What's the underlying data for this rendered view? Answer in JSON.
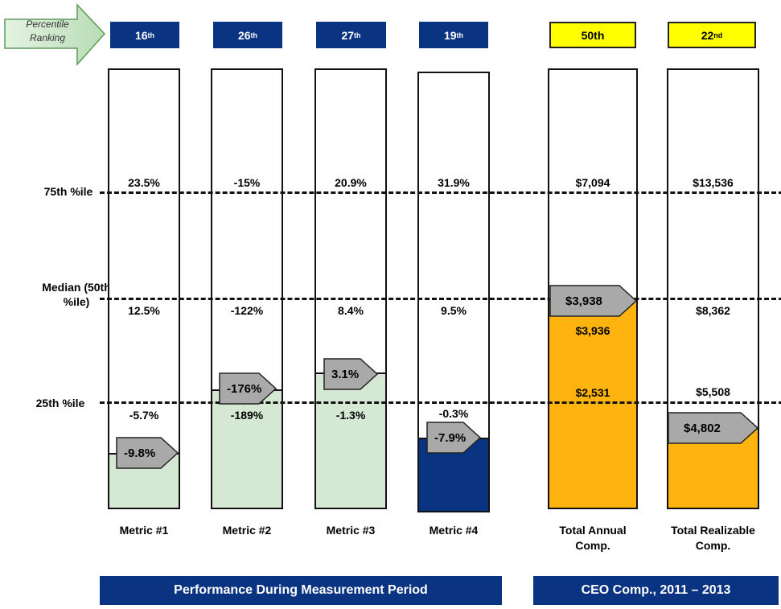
{
  "chart_data": {
    "type": "bar",
    "title": "",
    "header_arrow": "Percentile Ranking",
    "y_reference_labels": [
      "75th %ile",
      "Median (50th %ile)",
      "25th %ile"
    ],
    "columns": [
      {
        "label": "Metric #1",
        "rank": "16",
        "suffix": "th",
        "percentile": 16,
        "p75": "23.5%",
        "p50": "12.5%",
        "p25": "-5.7%",
        "value": "-9.8%",
        "color": "#d5e8d4"
      },
      {
        "label": "Metric #2",
        "rank": "26",
        "suffix": "th",
        "percentile": 26,
        "p75": "-15%",
        "p50": "-122%",
        "p25": "-189%",
        "value": "-176%",
        "color": "#d5e8d4"
      },
      {
        "label": "Metric #3",
        "rank": "27",
        "suffix": "th",
        "percentile": 27,
        "p75": "20.9%",
        "p50": "8.4%",
        "p25": "-1.3%",
        "value": "3.1%",
        "color": "#d5e8d4"
      },
      {
        "label": "Metric #4",
        "rank": "19",
        "suffix": "th",
        "percentile": 19,
        "p75": "31.9%",
        "p50": "9.5%",
        "p25": "-0.3%",
        "value": "-7.9%",
        "color": "#0a3382"
      },
      {
        "label": "Total Annual Comp.",
        "rank": "50th",
        "suffix": "",
        "percentile": 50,
        "p75": "$7,094",
        "p50": "$3,936",
        "p25": "$2,531",
        "value": "$3,938",
        "color": "#ffb30f"
      },
      {
        "label": "Total Realizable Comp.",
        "rank": "22",
        "suffix": "nd",
        "percentile": 22,
        "p75": "$13,536",
        "p50": "$8,362",
        "p25": "$5,508",
        "value": "$4,802",
        "color": "#ffb30f"
      }
    ],
    "groups": [
      "Performance During Measurement Period",
      "CEO Comp., 2011 – 2013"
    ]
  }
}
